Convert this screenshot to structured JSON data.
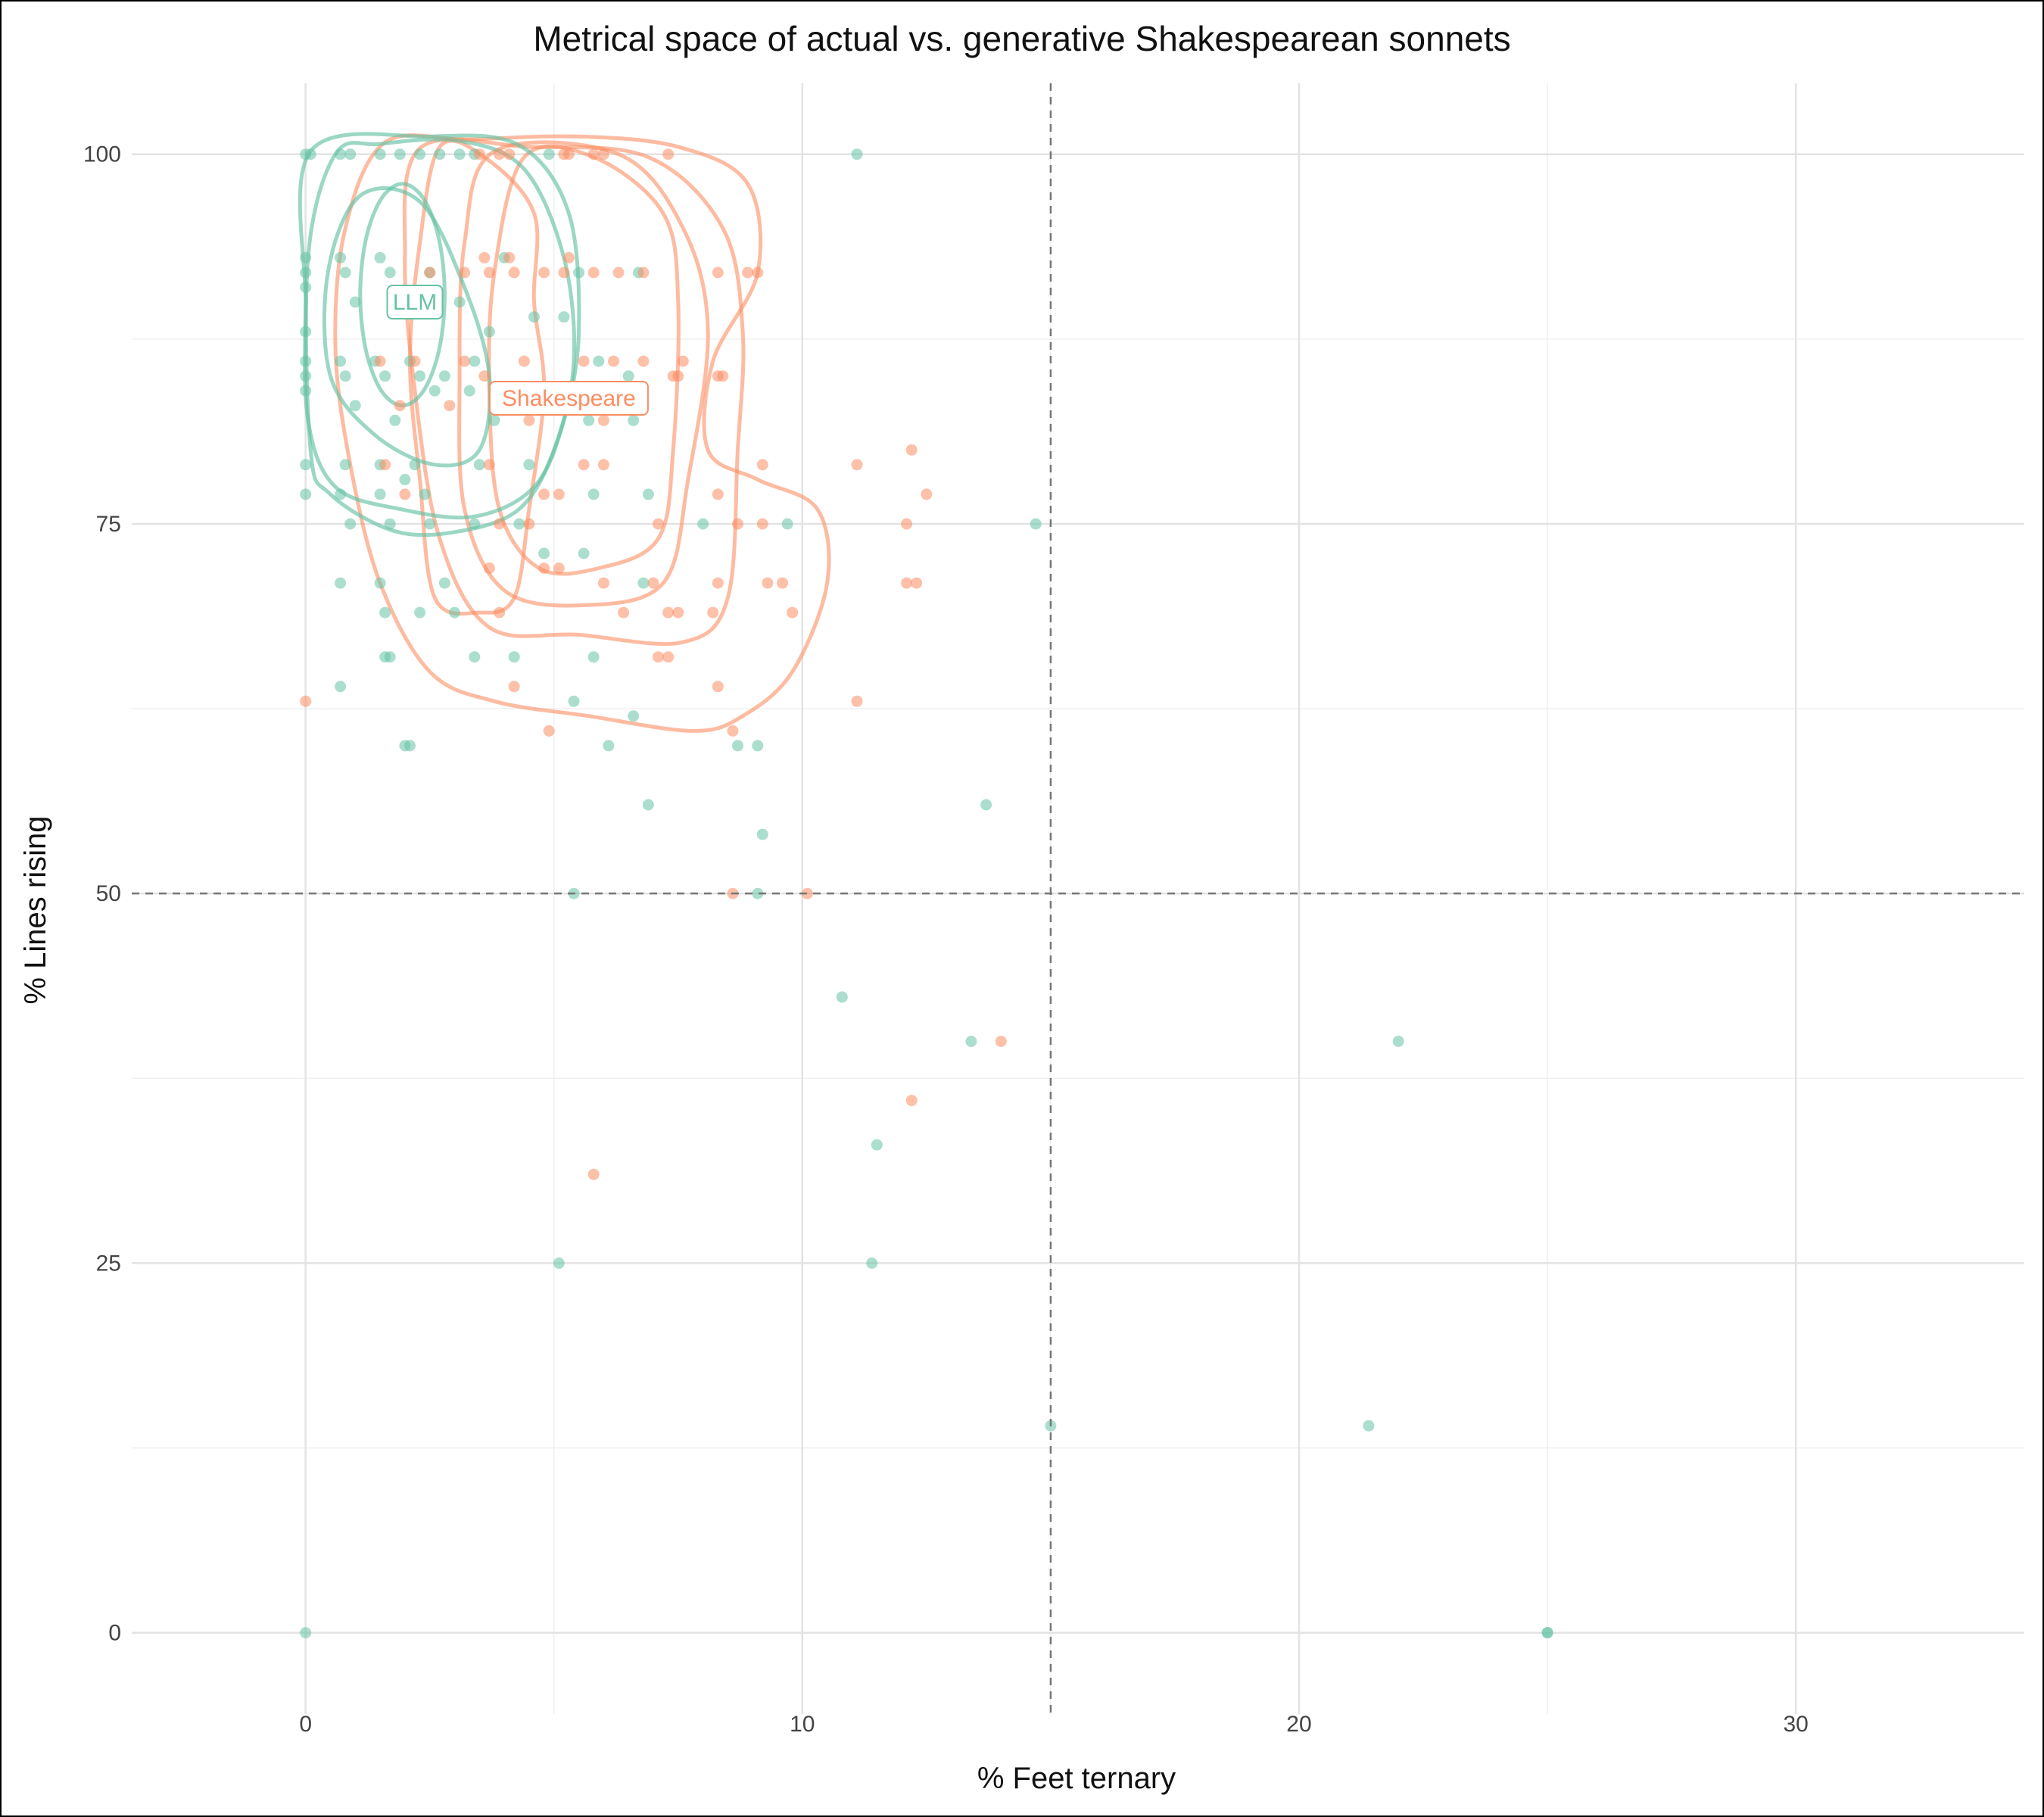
{
  "chart_data": {
    "type": "scatter",
    "title": "Metrical space of actual vs. generative Shakespearean sonnets",
    "xlabel": "% Feet ternary",
    "ylabel": "% Lines rising",
    "xlim": [
      -3.5,
      34.6
    ],
    "ylim": [
      -5.5,
      104.8
    ],
    "xticks": [
      0,
      10,
      20,
      30
    ],
    "yticks": [
      0,
      25,
      50,
      75,
      100
    ],
    "grid": true,
    "legend": "none",
    "reference_lines": {
      "x": 15,
      "y": 50,
      "style": "dashed"
    },
    "series": [
      {
        "name": "LLM",
        "color": "#66c2a5",
        "label_at": [
          2.2,
          90
        ],
        "points": [
          [
            0,
            100
          ],
          [
            0.1,
            100
          ],
          [
            0.7,
            100
          ],
          [
            0.9,
            100
          ],
          [
            1.5,
            100
          ],
          [
            1.9,
            100
          ],
          [
            2.3,
            100
          ],
          [
            2.7,
            100
          ],
          [
            3.1,
            100
          ],
          [
            3.4,
            100
          ],
          [
            4.9,
            100
          ],
          [
            11.1,
            100
          ],
          [
            0,
            93
          ],
          [
            0,
            92
          ],
          [
            0.7,
            93
          ],
          [
            0.8,
            92
          ],
          [
            1.5,
            93
          ],
          [
            1.7,
            92
          ],
          [
            2.5,
            92
          ],
          [
            4.0,
            93
          ],
          [
            5.5,
            92
          ],
          [
            6.7,
            92
          ],
          [
            0,
            91
          ],
          [
            0,
            88
          ],
          [
            1.0,
            90
          ],
          [
            2.2,
            90
          ],
          [
            3.1,
            90
          ],
          [
            4.6,
            89
          ],
          [
            3.7,
            88
          ],
          [
            5.2,
            89
          ],
          [
            0,
            86
          ],
          [
            0,
            85
          ],
          [
            0,
            84
          ],
          [
            0.7,
            86
          ],
          [
            0.8,
            85
          ],
          [
            1.4,
            86
          ],
          [
            1.6,
            85
          ],
          [
            2.1,
            86
          ],
          [
            2.3,
            85
          ],
          [
            2.8,
            85
          ],
          [
            3.4,
            86
          ],
          [
            5.9,
            86
          ],
          [
            6.5,
            85
          ],
          [
            1.0,
            83
          ],
          [
            1.8,
            82
          ],
          [
            2.6,
            84
          ],
          [
            3.3,
            84
          ],
          [
            4.6,
            84
          ],
          [
            6.6,
            82
          ],
          [
            3.8,
            82
          ],
          [
            5.7,
            82
          ],
          [
            0,
            79
          ],
          [
            0.8,
            79
          ],
          [
            1.5,
            79
          ],
          [
            2.2,
            79
          ],
          [
            2.0,
            78
          ],
          [
            3.5,
            79
          ],
          [
            4.5,
            79
          ],
          [
            5.8,
            77
          ],
          [
            6.9,
            77
          ],
          [
            0,
            77
          ],
          [
            0.7,
            77
          ],
          [
            1.5,
            77
          ],
          [
            2.4,
            77
          ],
          [
            0.9,
            75
          ],
          [
            1.7,
            75
          ],
          [
            2.5,
            75
          ],
          [
            3.4,
            75
          ],
          [
            4.3,
            75
          ],
          [
            8.0,
            75
          ],
          [
            9.7,
            75
          ],
          [
            14.7,
            75
          ],
          [
            4.8,
            73
          ],
          [
            0.7,
            71
          ],
          [
            1.5,
            71
          ],
          [
            2.8,
            71
          ],
          [
            3.0,
            69
          ],
          [
            6.8,
            71
          ],
          [
            5.6,
            73
          ],
          [
            1.6,
            69
          ],
          [
            2.3,
            69
          ],
          [
            1.6,
            66
          ],
          [
            1.7,
            66
          ],
          [
            3.4,
            66
          ],
          [
            4.2,
            66
          ],
          [
            5.8,
            66
          ],
          [
            0.7,
            64
          ],
          [
            5.4,
            63
          ],
          [
            6.6,
            62
          ],
          [
            2.0,
            60
          ],
          [
            2.1,
            60
          ],
          [
            6.1,
            60
          ],
          [
            8.7,
            60
          ],
          [
            9.1,
            60
          ],
          [
            6.9,
            56
          ],
          [
            13.7,
            56
          ],
          [
            9.2,
            54
          ],
          [
            5.4,
            50
          ],
          [
            9.1,
            50
          ],
          [
            10.8,
            43
          ],
          [
            13.4,
            40
          ],
          [
            22.0,
            40
          ],
          [
            11.5,
            33
          ],
          [
            5.1,
            25
          ],
          [
            11.4,
            25
          ],
          [
            15.0,
            14
          ],
          [
            21.4,
            14
          ],
          [
            0,
            0
          ],
          [
            25.0,
            0
          ],
          [
            25.0,
            0
          ]
        ]
      },
      {
        "name": "Shakespeare",
        "color": "#fc8d62",
        "label_at": [
          5.3,
          83.5
        ],
        "points": [
          [
            3.5,
            100
          ],
          [
            3.9,
            100
          ],
          [
            4.1,
            100
          ],
          [
            5.2,
            100
          ],
          [
            5.3,
            100
          ],
          [
            5.8,
            100
          ],
          [
            6.0,
            100
          ],
          [
            7.3,
            100
          ],
          [
            2.5,
            92
          ],
          [
            3.2,
            92
          ],
          [
            3.7,
            92
          ],
          [
            4.2,
            92
          ],
          [
            4.8,
            92
          ],
          [
            5.2,
            92
          ],
          [
            5.8,
            92
          ],
          [
            6.3,
            92
          ],
          [
            6.8,
            92
          ],
          [
            8.3,
            92
          ],
          [
            8.9,
            92
          ],
          [
            9.1,
            92
          ],
          [
            3.6,
            93
          ],
          [
            4.1,
            93
          ],
          [
            5.3,
            93
          ],
          [
            2.2,
            86
          ],
          [
            3.2,
            86
          ],
          [
            4.4,
            86
          ],
          [
            5.6,
            86
          ],
          [
            6.2,
            86
          ],
          [
            6.8,
            86
          ],
          [
            7.4,
            85
          ],
          [
            7.6,
            86
          ],
          [
            8.3,
            85
          ],
          [
            1.5,
            86
          ],
          [
            3.6,
            85
          ],
          [
            7.5,
            85
          ],
          [
            8.4,
            85
          ],
          [
            2.9,
            83
          ],
          [
            4.5,
            82
          ],
          [
            6.0,
            82
          ],
          [
            5.3,
            83
          ],
          [
            1.9,
            83
          ],
          [
            3.7,
            79
          ],
          [
            5.6,
            79
          ],
          [
            6.0,
            79
          ],
          [
            1.6,
            79
          ],
          [
            9.2,
            79
          ],
          [
            11.1,
            79
          ],
          [
            12.2,
            80
          ],
          [
            12.5,
            77
          ],
          [
            8.3,
            77
          ],
          [
            2.0,
            77
          ],
          [
            4.8,
            77
          ],
          [
            5.1,
            77
          ],
          [
            3.9,
            75
          ],
          [
            4.5,
            75
          ],
          [
            7.1,
            75
          ],
          [
            8.7,
            75
          ],
          [
            9.2,
            75
          ],
          [
            12.1,
            75
          ],
          [
            3.7,
            72
          ],
          [
            4.8,
            72
          ],
          [
            5.1,
            72
          ],
          [
            6.0,
            71
          ],
          [
            7.0,
            71
          ],
          [
            8.3,
            71
          ],
          [
            9.3,
            71
          ],
          [
            9.6,
            71
          ],
          [
            12.1,
            71
          ],
          [
            12.3,
            71
          ],
          [
            6.4,
            69
          ],
          [
            7.3,
            69
          ],
          [
            7.5,
            69
          ],
          [
            8.2,
            69
          ],
          [
            9.8,
            69
          ],
          [
            3.9,
            69
          ],
          [
            7.1,
            66
          ],
          [
            7.3,
            66
          ],
          [
            4.2,
            64
          ],
          [
            8.3,
            64
          ],
          [
            11.1,
            63
          ],
          [
            0,
            63
          ],
          [
            4.9,
            61
          ],
          [
            8.6,
            61
          ],
          [
            8.6,
            50
          ],
          [
            10.1,
            50
          ],
          [
            14.0,
            40
          ],
          [
            12.2,
            36
          ],
          [
            5.8,
            31
          ]
        ]
      }
    ]
  }
}
